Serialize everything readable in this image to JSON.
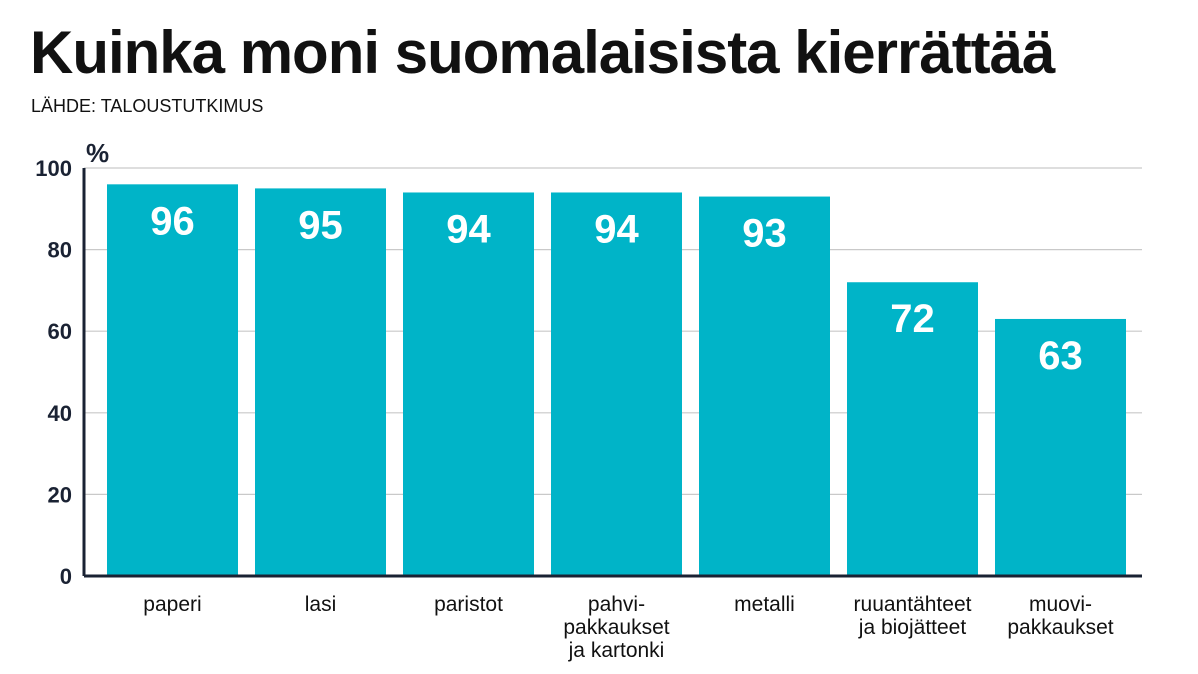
{
  "title": "Kuinka moni suomalaisista kierrättää",
  "source": "LÄHDE: TALOUSTUTKIMUS",
  "colors": {
    "bar": "#00b4c8",
    "bar_label": "#ffffff",
    "axis": "#1a2233",
    "grid": "#c9c9c9",
    "text": "#111111"
  },
  "chart_data": {
    "type": "bar",
    "title": "Kuinka moni suomalaisista kierrättää",
    "subtitle": "LÄHDE: TALOUSTUTKIMUS",
    "ylabel": "%",
    "xlabel": "",
    "ylim": [
      0,
      100
    ],
    "yticks": [
      0,
      20,
      40,
      60,
      80,
      100
    ],
    "grid": true,
    "categories": [
      "paperi",
      "lasi",
      "paristot",
      "pahvi-\npakkaukset\nja kartonki",
      "metalli",
      "ruuantähteet\nja biojätteet",
      "muovi-\npakkaukset"
    ],
    "values": [
      96,
      95,
      94,
      94,
      93,
      72,
      63
    ],
    "data_labels": [
      "96",
      "95",
      "94",
      "94",
      "93",
      "72",
      "63"
    ]
  }
}
